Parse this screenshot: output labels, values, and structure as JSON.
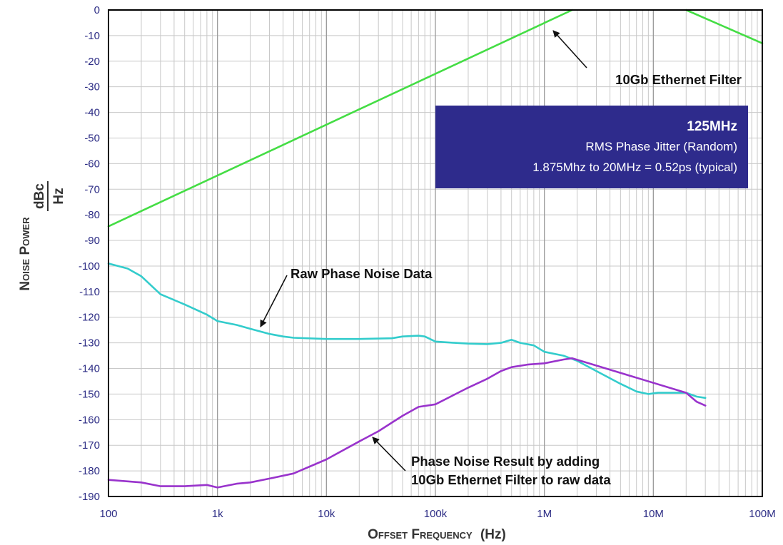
{
  "colors": {
    "background": "#ffffff",
    "grid": "#c8c8c8",
    "frame": "#000000",
    "tick_text": "#2b2b84",
    "filter": "#44dd44",
    "raw": "#33cccc",
    "result": "#9933cc",
    "info_box": "#2e2b8c"
  },
  "chart_data": {
    "type": "line",
    "xscale": "log",
    "grid": true,
    "xlim": [
      100,
      100000000
    ],
    "ylim": [
      -190,
      0
    ],
    "xticks": [
      {
        "value": 100,
        "label": "100"
      },
      {
        "value": 1000,
        "label": "1k"
      },
      {
        "value": 10000,
        "label": "10k"
      },
      {
        "value": 100000,
        "label": "100k"
      },
      {
        "value": 1000000,
        "label": "1M"
      },
      {
        "value": 10000000,
        "label": "10M"
      },
      {
        "value": 100000000,
        "label": "100M"
      }
    ],
    "yticks": [
      "0",
      "-10",
      "-20",
      "-30",
      "-40",
      "-50",
      "-60",
      "-70",
      "-80",
      "-90",
      "-100",
      "-110",
      "-120",
      "-130",
      "-140",
      "-150",
      "-160",
      "-170",
      "-180",
      "-190"
    ],
    "xlabel": {
      "main": "Offset Frequency",
      "unit": "(Hz)"
    },
    "ylabel": {
      "main": "Noise Power",
      "unit_num": "dBc",
      "unit_den": "Hz"
    },
    "series": [
      {
        "key": "filter",
        "color": "#44dd44",
        "points": [
          [
            100,
            -84.5
          ],
          [
            1800000,
            0
          ]
        ]
      },
      {
        "key": "filter_hp",
        "color": "#44dd44",
        "points": [
          [
            20000000,
            0
          ],
          [
            100000000,
            -13
          ]
        ]
      },
      {
        "key": "raw",
        "color": "#33cccc",
        "points": [
          [
            100,
            -99
          ],
          [
            150,
            -101
          ],
          [
            200,
            -104
          ],
          [
            300,
            -111
          ],
          [
            500,
            -115
          ],
          [
            800,
            -119
          ],
          [
            1000,
            -121.5
          ],
          [
            1500,
            -123
          ],
          [
            2000,
            -124.5
          ],
          [
            3000,
            -126.5
          ],
          [
            4000,
            -127.5
          ],
          [
            5000,
            -128
          ],
          [
            10000,
            -128.5
          ],
          [
            20000,
            -128.5
          ],
          [
            40000,
            -128.2
          ],
          [
            50000,
            -127.5
          ],
          [
            70000,
            -127.2
          ],
          [
            80000,
            -127.5
          ],
          [
            100000,
            -129.5
          ],
          [
            150000,
            -130
          ],
          [
            200000,
            -130.3
          ],
          [
            300000,
            -130.5
          ],
          [
            400000,
            -130
          ],
          [
            500000,
            -128.8
          ],
          [
            600000,
            -130
          ],
          [
            800000,
            -131
          ],
          [
            1000000,
            -133.5
          ],
          [
            1500000,
            -135
          ],
          [
            2000000,
            -137
          ],
          [
            3000000,
            -141
          ],
          [
            5000000,
            -146
          ],
          [
            7000000,
            -149
          ],
          [
            9000000,
            -150
          ],
          [
            11000000,
            -149.5
          ],
          [
            15000000,
            -149.5
          ],
          [
            20000000,
            -149.5
          ],
          [
            25000000,
            -151
          ],
          [
            30000000,
            -151.5
          ]
        ]
      },
      {
        "key": "result",
        "color": "#9933cc",
        "points": [
          [
            100,
            -183.5
          ],
          [
            200,
            -184.5
          ],
          [
            300,
            -186
          ],
          [
            500,
            -186
          ],
          [
            800,
            -185.5
          ],
          [
            1000,
            -186.5
          ],
          [
            1500,
            -185
          ],
          [
            2000,
            -184.5
          ],
          [
            3000,
            -183
          ],
          [
            5000,
            -181
          ],
          [
            10000,
            -175.5
          ],
          [
            20000,
            -168.5
          ],
          [
            30000,
            -164.5
          ],
          [
            50000,
            -158.5
          ],
          [
            70000,
            -155
          ],
          [
            100000,
            -154
          ],
          [
            200000,
            -147.5
          ],
          [
            300000,
            -144
          ],
          [
            400000,
            -141
          ],
          [
            500000,
            -139.5
          ],
          [
            700000,
            -138.5
          ],
          [
            1000000,
            -138
          ],
          [
            1500000,
            -136.5
          ],
          [
            1800000,
            -136
          ],
          [
            20000000,
            -149.5
          ],
          [
            25000000,
            -153
          ],
          [
            30000000,
            -154.5
          ]
        ]
      }
    ],
    "annotations": [
      {
        "key": "filter_label",
        "text": "10Gb Ethernet Filter",
        "target": [
          1000000,
          -5
        ]
      },
      {
        "key": "raw_label",
        "text": "Raw Phase Noise Data",
        "target": [
          2500000,
          -126
        ]
      },
      {
        "key": "result_label_1",
        "text": "Phase Noise Result by adding"
      },
      {
        "key": "result_label_2",
        "text": "10Gb Ethernet Filter to raw data",
        "target": [
          25000,
          -167
        ]
      }
    ],
    "info_box": {
      "title": "125MHz",
      "line1": "RMS Phase Jitter  (Random)",
      "line2": "1.875Mhz to 20MHz = 0.52ps (typical)"
    }
  }
}
